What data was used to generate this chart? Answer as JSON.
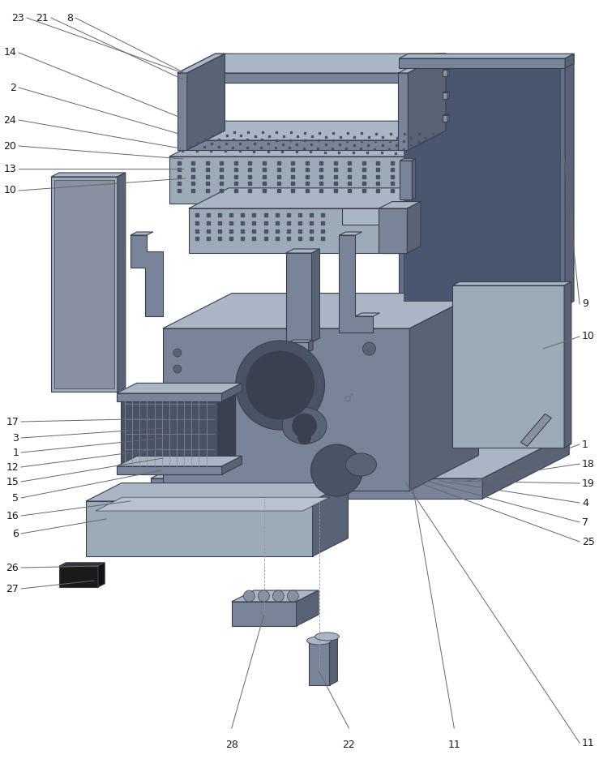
{
  "fig_width": 7.39,
  "fig_height": 9.52,
  "bg_color": "#ffffff",
  "lc": "#3a4050",
  "pf_main": "#7a8499",
  "pf_light": "#9daab8",
  "pf_dark": "#5a6275",
  "pf_top": "#aab5c5",
  "pf_inner": "#b8c2d0",
  "label_fs": 9,
  "label_color": "#1a1a1a"
}
